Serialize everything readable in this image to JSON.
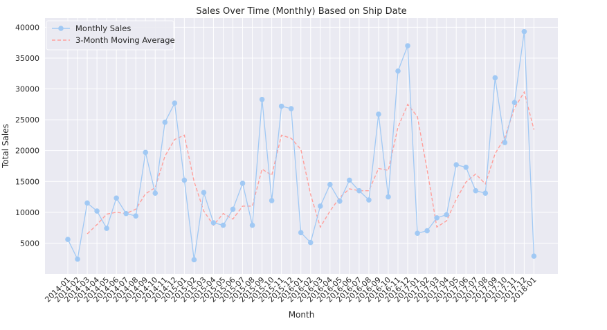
{
  "chart_data": {
    "type": "line",
    "title": "Sales Over Time (Monthly) Based on Ship Date",
    "xlabel": "Month",
    "ylabel": "Total Sales",
    "ylim": [
      0,
      41500
    ],
    "yticks": [
      5000,
      10000,
      15000,
      20000,
      25000,
      30000,
      35000,
      40000
    ],
    "grid": true,
    "legend_position": "top-left",
    "colors": {
      "background": "#eaeaf2",
      "grid": "#ffffff",
      "monthly": "#a1c9f4",
      "moving_avg": "#ff9f9b"
    },
    "categories": [
      "2014-01",
      "2014-02",
      "2014-03",
      "2014-04",
      "2014-05",
      "2014-06",
      "2014-07",
      "2014-08",
      "2014-09",
      "2014-10",
      "2014-11",
      "2014-12",
      "2015-01",
      "2015-02",
      "2015-03",
      "2015-04",
      "2015-05",
      "2015-06",
      "2015-07",
      "2015-08",
      "2015-09",
      "2015-10",
      "2015-11",
      "2015-12",
      "2016-01",
      "2016-02",
      "2016-03",
      "2016-04",
      "2016-05",
      "2016-06",
      "2016-07",
      "2016-08",
      "2016-09",
      "2016-10",
      "2016-11",
      "2016-12",
      "2017-01",
      "2017-02",
      "2017-03",
      "2017-04",
      "2017-05",
      "2017-06",
      "2017-07",
      "2017-08",
      "2017-09",
      "2017-10",
      "2017-11",
      "2017-12",
      "2018-01"
    ],
    "series": [
      {
        "name": "Monthly Sales",
        "style": "solid-with-markers",
        "values": [
          5600,
          2400,
          11500,
          10200,
          7400,
          12300,
          9800,
          9400,
          19700,
          13100,
          24600,
          27700,
          15200,
          2300,
          13200,
          8300,
          7900,
          10500,
          14700,
          7900,
          28300,
          11900,
          27200,
          26800,
          6700,
          5100,
          11000,
          14500,
          11800,
          15200,
          13500,
          12000,
          25900,
          12500,
          32900,
          37000,
          6600,
          7000,
          9100,
          9600,
          17700,
          17300,
          13500,
          13100,
          31800,
          21300,
          27800,
          39300,
          2900
        ]
      },
      {
        "name": "3-Month Moving Average",
        "style": "dashed",
        "values": [
          null,
          null,
          6500,
          8000,
          9700,
          10000,
          9800,
          10500,
          13000,
          14000,
          19100,
          21800,
          22500,
          15000,
          10200,
          7900,
          9800,
          8900,
          11000,
          11000,
          17000,
          16000,
          22500,
          22000,
          20200,
          12900,
          7600,
          10200,
          12400,
          13800,
          13500,
          13500,
          17100,
          16800,
          23800,
          27500,
          25500,
          16900,
          7600,
          8600,
          12100,
          14900,
          16200,
          14600,
          19500,
          22100,
          26900,
          29500,
          23400
        ]
      }
    ]
  }
}
